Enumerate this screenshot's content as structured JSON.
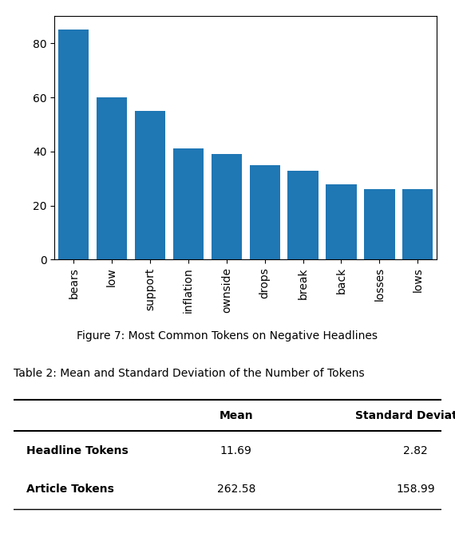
{
  "chart_data": [
    {
      "type": "bar",
      "title": "Figure 7: Most Common Tokens on Negative Headlines",
      "categories": [
        "bears",
        "low",
        "support",
        "inflation",
        "ownside",
        "drops",
        "break",
        "back",
        "losses",
        "lows"
      ],
      "values": [
        85,
        60,
        55,
        41,
        39,
        35,
        33,
        28,
        26,
        26
      ],
      "ylim": [
        0,
        90
      ],
      "yticks": [
        0,
        20,
        40,
        60,
        80
      ],
      "grid": false
    },
    {
      "type": "table",
      "title": "Table 2: Mean and Standard Deviation of the Number of Tokens",
      "columns": [
        "Mean",
        "Standard Deviation"
      ],
      "rows": [
        {
          "name": "Headline Tokens",
          "values": [
            11.69,
            2.82
          ]
        },
        {
          "name": "Article Tokens",
          "values": [
            262.58,
            158.99
          ]
        }
      ]
    }
  ]
}
